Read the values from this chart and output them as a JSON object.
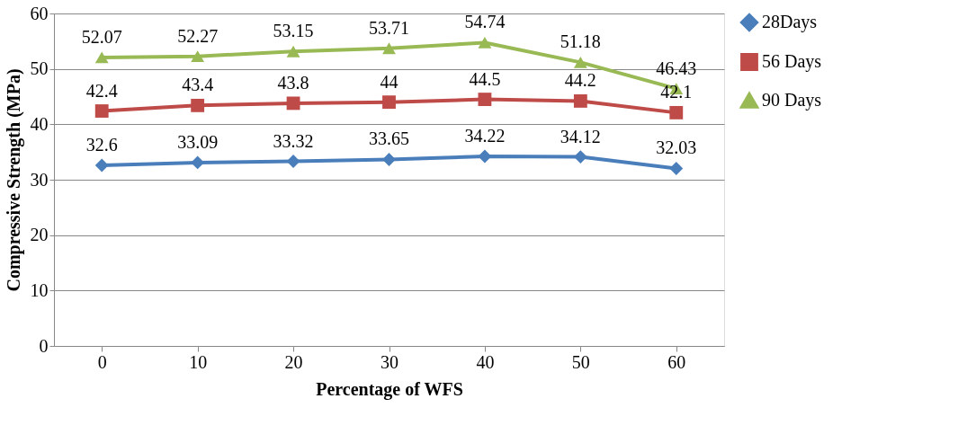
{
  "chart_data": {
    "type": "line",
    "xlabel": "Percentage of WFS",
    "ylabel": "Compressive Strength (MPa)",
    "categories": [
      "0",
      "10",
      "20",
      "30",
      "40",
      "50",
      "60"
    ],
    "series": [
      {
        "name": "28Days",
        "color": "#4a7ebb",
        "marker": "diamond",
        "values": [
          32.6,
          33.09,
          33.32,
          33.65,
          34.22,
          34.12,
          32.03
        ]
      },
      {
        "name": "56 Days",
        "color": "#be4b48",
        "marker": "square",
        "values": [
          42.4,
          43.4,
          43.8,
          44,
          44.5,
          44.2,
          42.1
        ]
      },
      {
        "name": "90 Days",
        "color": "#98b954",
        "marker": "triangle",
        "values": [
          52.07,
          52.27,
          53.15,
          53.71,
          54.74,
          51.18,
          46.43
        ]
      }
    ],
    "ylim": [
      0,
      60
    ],
    "yticks": [
      0,
      10,
      20,
      30,
      40,
      50,
      60
    ],
    "grid": "y",
    "legend": "right",
    "data_labels": true,
    "line_style": "solid"
  }
}
